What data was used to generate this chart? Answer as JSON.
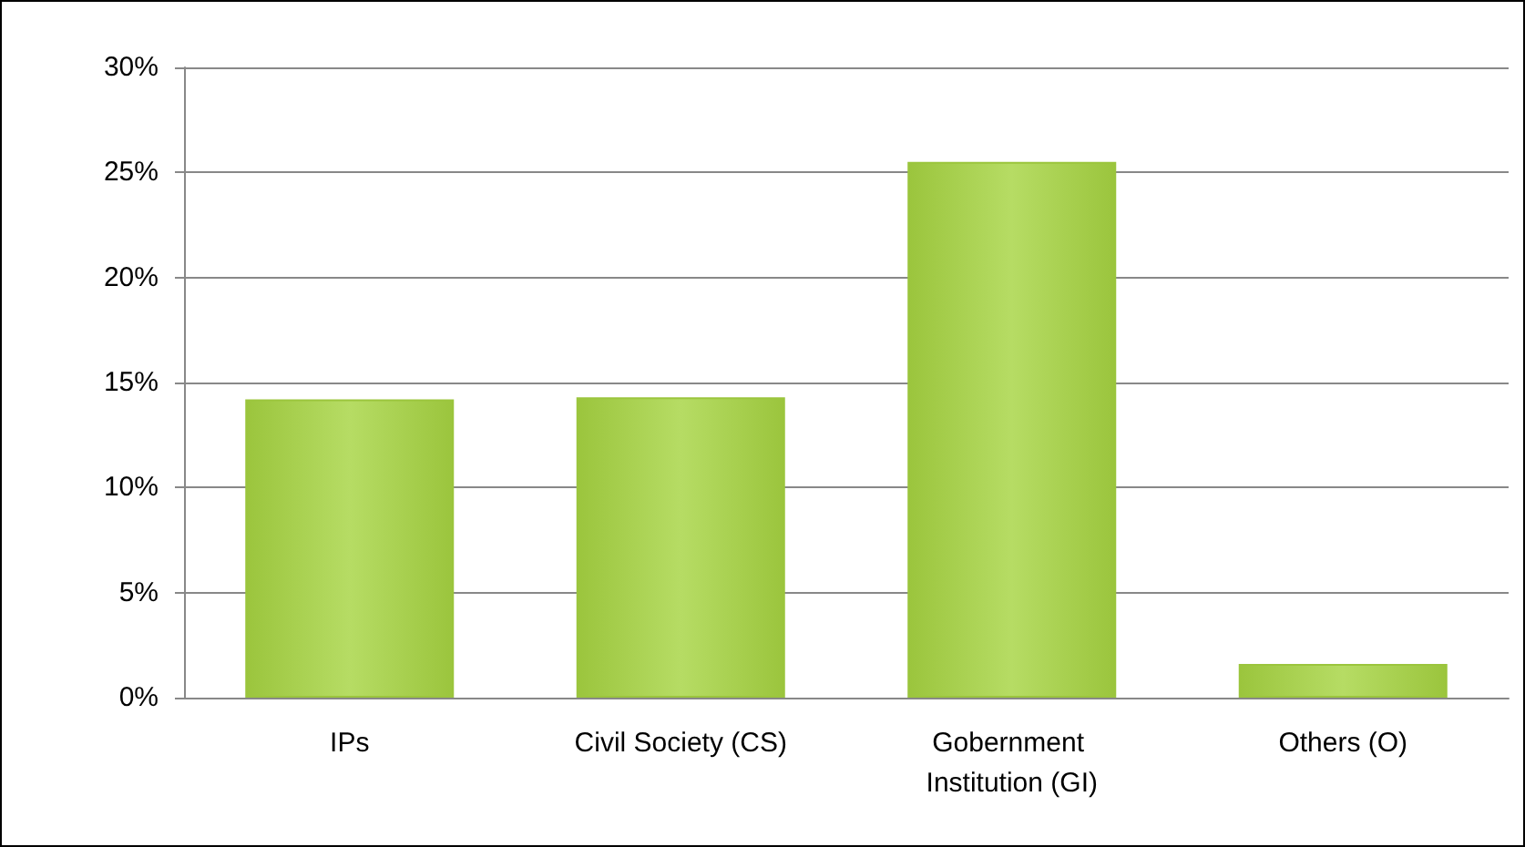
{
  "chart_data": {
    "type": "bar",
    "categories": [
      "IPs",
      "Civil Society (CS)",
      "Gobernment Institution (GI)",
      "Others (O)"
    ],
    "values": [
      14.2,
      14.3,
      25.5,
      1.6
    ],
    "color": "#9bc53d",
    "ylim": [
      0,
      30
    ],
    "yticks": [
      {
        "value": 0,
        "label": "0%"
      },
      {
        "value": 5,
        "label": "5%"
      },
      {
        "value": 10,
        "label": "10%"
      },
      {
        "value": 15,
        "label": "15%"
      },
      {
        "value": 20,
        "label": "20%"
      },
      {
        "value": 25,
        "label": "25%"
      },
      {
        "value": 30,
        "label": "30%"
      }
    ],
    "grid": "y"
  }
}
